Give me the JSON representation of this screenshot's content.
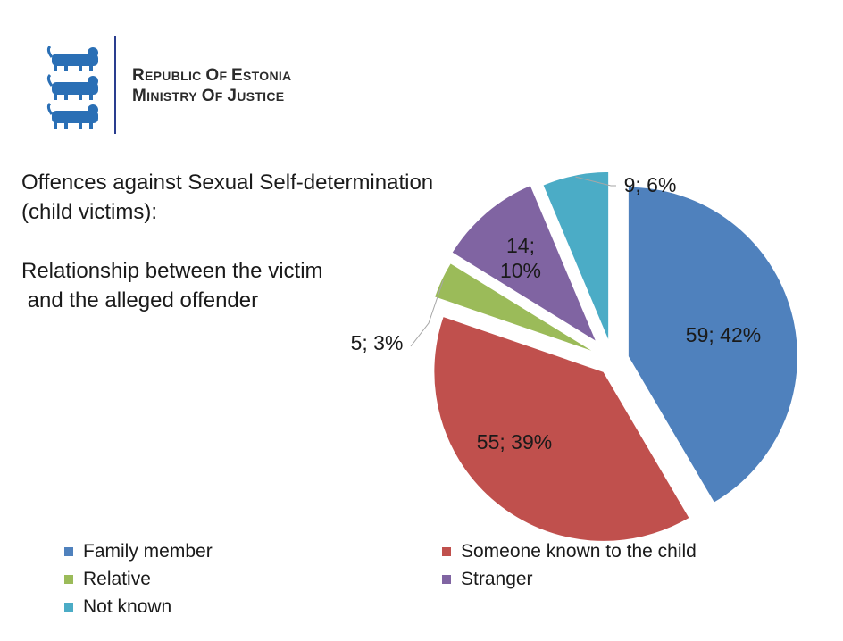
{
  "header": {
    "org_line1": "Republic of Estonia",
    "org_line2": "Ministry of Justice",
    "emblem_icon": "three-lions-coat-of-arms-icon"
  },
  "chart_data": {
    "type": "pie",
    "title_lines": [
      "Offences against Sexual Self-determination",
      "(child victims):",
      "",
      "Relationship between the victim",
      " and the alleged offender"
    ],
    "start_angle_deg": 0,
    "direction": "clockwise",
    "slices": [
      {
        "label": "Family member",
        "value": 59,
        "percent": 42,
        "data_label": "59; 42%",
        "color": "#4f81bd"
      },
      {
        "label": "Someone known to the child",
        "value": 55,
        "percent": 39,
        "data_label": "55; 39%",
        "color": "#c0504d"
      },
      {
        "label": "Relative",
        "value": 5,
        "percent": 3,
        "data_label": "5; 3%",
        "color": "#9bbb59"
      },
      {
        "label": "Stranger",
        "value": 14,
        "percent": 10,
        "data_label_lines": [
          "14;",
          "10%"
        ],
        "color": "#8064a2"
      },
      {
        "label": "Not known",
        "value": 9,
        "percent": 6,
        "data_label": "9; 6%",
        "color": "#4bacc6"
      }
    ],
    "legend_position": "bottom"
  }
}
